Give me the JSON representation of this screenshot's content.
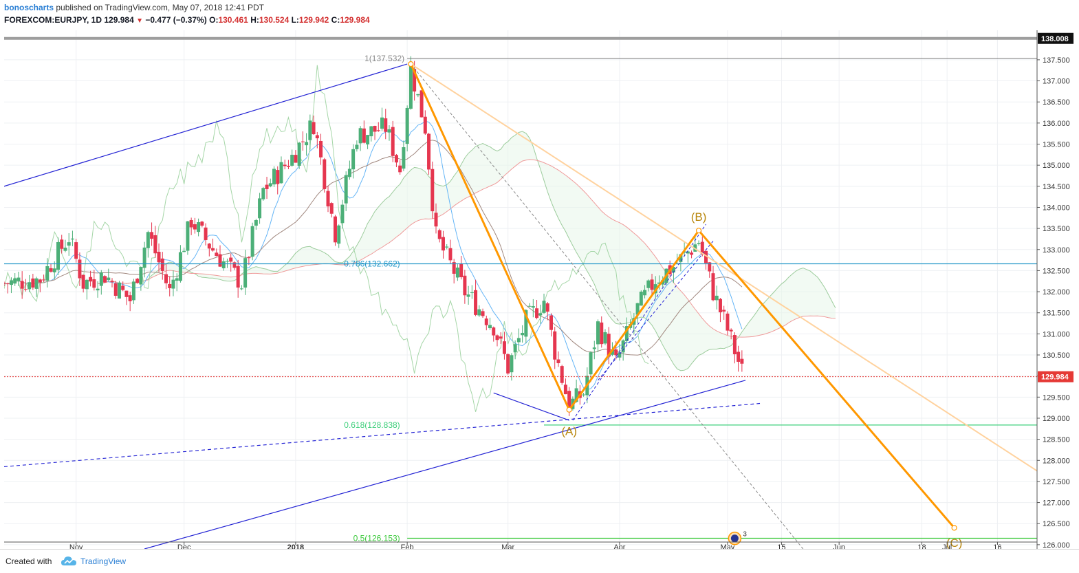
{
  "header": {
    "author": "bonoscharts",
    "published": "published on TradingView.com, May 07, 2018 12:41 PDT",
    "symbol": "FOREXCOM:EURJPY, 1D",
    "last": "129.984",
    "change": "−0.477 (−0.37%)",
    "o_label": "O:",
    "o": "130.461",
    "h_label": "H:",
    "h": "130.524",
    "l_label": "L:",
    "l": "129.942",
    "c_label": "C:",
    "c": "129.984"
  },
  "footer": {
    "created_with": "Created with",
    "brand": "TradingView"
  },
  "colors": {
    "up": "#4caf78",
    "down": "#e5364f",
    "channel": "#2323d4",
    "wave": "#ff9800",
    "wave_label": "#b8860b",
    "fib_786": "#2196c8",
    "fib_618": "#3ecf7b",
    "fib_05": "#3ac93a",
    "price_line": "#e53935"
  },
  "chart_data": {
    "type": "candlestick",
    "title": "",
    "x_axis": {
      "ticks": [
        "Nov",
        "Dec",
        "2018",
        "Feb",
        "Mar",
        "Apr",
        "May",
        "15",
        "Jun",
        "18",
        "Jul",
        "16"
      ],
      "tick_days": [
        20,
        50,
        81,
        112,
        140,
        171,
        201,
        216,
        232,
        255,
        262,
        276
      ]
    },
    "y_axis": {
      "ylim": [
        125.9,
        138.2
      ],
      "ticks": [
        "126.000",
        "126.500",
        "127.000",
        "127.500",
        "128.000",
        "128.500",
        "129.000",
        "129.500",
        "130.000",
        "130.500",
        "131.000",
        "131.500",
        "132.000",
        "132.500",
        "133.000",
        "133.500",
        "134.000",
        "134.500",
        "135.000",
        "135.500",
        "136.000",
        "136.500",
        "137.000",
        "137.500"
      ],
      "last_price": "129.984",
      "top_price": "138.008"
    },
    "series_hint": "Daily EUR/JPY candles, Oct 2017 – May 2018, with Ichimoku cloud",
    "annotations": {
      "fib_786": "0.786(132.662)",
      "fib_786_value": 132.662,
      "fib_618": "0.618(128.838)",
      "fib_618_value": 128.838,
      "fib_05": "0.5(126.153)",
      "fib_05_value": 126.153,
      "fib_1": "1(137.532)",
      "fib_1_value": 137.532,
      "wave_a": "(A)",
      "wave_b": "(B)",
      "wave_c": "(C)",
      "icon_count": "3"
    },
    "wave_points": [
      {
        "day": 113,
        "price": 137.4
      },
      {
        "day": 157,
        "price": 129.2
      },
      {
        "day": 193,
        "price": 133.45
      },
      {
        "day": 264,
        "price": 126.4
      }
    ]
  }
}
